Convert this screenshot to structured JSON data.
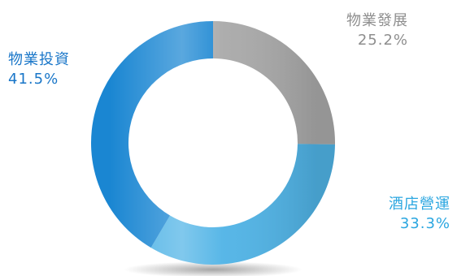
{
  "chart_data": {
    "type": "pie",
    "donut": true,
    "slices": [
      {
        "name": "物業發展",
        "value": 25.2,
        "display": "25.2%",
        "color": "#a9a9a9"
      },
      {
        "name": "酒店營運",
        "value": 33.3,
        "display": "33.3%",
        "color": "#4fb3e6"
      },
      {
        "name": "物業投資",
        "value": 41.5,
        "display": "41.5%",
        "color": "#1a86d2"
      }
    ],
    "start_angle_deg": 0,
    "direction": "clockwise",
    "label_colors": {
      "物業發展": "#8e8e8e",
      "酒店營運": "#2aa6e0",
      "物業投資": "#1976c8"
    }
  }
}
